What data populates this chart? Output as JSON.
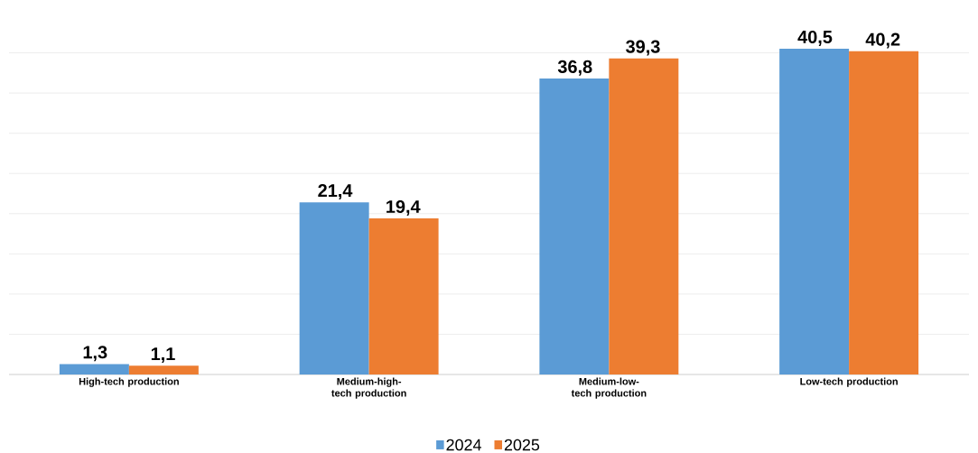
{
  "chart_data": {
    "type": "bar",
    "categories": [
      "High-tech production",
      "Medium-high-tech production",
      "Medium-low-tech production",
      "Low-tech production"
    ],
    "series": [
      {
        "name": "2024",
        "color": "#5b9bd5",
        "values": [
          1.3,
          21.4,
          36.8,
          40.5
        ],
        "value_labels": [
          "1,3",
          "21,4",
          "36,8",
          "40,5"
        ]
      },
      {
        "name": "2025",
        "color": "#ed7d31",
        "values": [
          1.1,
          19.4,
          39.3,
          40.2
        ],
        "value_labels": [
          "1,1",
          "19,4",
          "39,3",
          "40,2"
        ]
      }
    ],
    "grid": "y",
    "legend": "bottom",
    "tick_labels": "x"
  }
}
